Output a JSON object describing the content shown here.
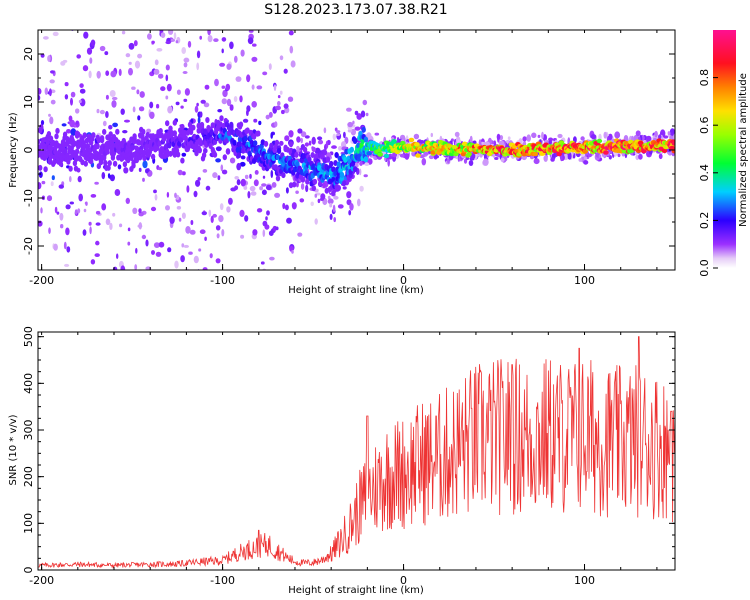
{
  "title": "S128.2023.173.07.38.R21",
  "colors": {
    "spectrogram_background": "#ffffff",
    "snr_line": "#ee3333",
    "axis": "#000000"
  },
  "chart_data": [
    {
      "type": "heatmap",
      "xlabel": "Height of straight line (km)",
      "ylabel": "Frequency (Hz)",
      "xlim": [
        -202,
        150
      ],
      "ylim": [
        -25,
        25
      ],
      "xticks": [
        -200,
        -100,
        0,
        100
      ],
      "yticks": [
        -20,
        -10,
        0,
        10,
        20
      ],
      "tick_labels_x": [
        "-200",
        "-100",
        "0",
        "100"
      ],
      "tick_labels_y": [
        "-20",
        "-10",
        "0",
        "10",
        "20"
      ],
      "colorbar": {
        "label": "Normalized spectral amplitude",
        "range": [
          0.0,
          1.0
        ],
        "ticks": [
          "0.0",
          "0.2",
          "0.4",
          "0.6",
          "0.8"
        ],
        "tick_values": [
          0.0,
          0.2,
          0.4,
          0.6,
          0.8
        ],
        "colormap": "white-purple-blue-cyan-green-yellow-red-magenta"
      },
      "ridge_frequency_vs_height": [
        [
          -200,
          0.0
        ],
        [
          -180,
          0.0
        ],
        [
          -160,
          0.0
        ],
        [
          -140,
          1.0
        ],
        [
          -120,
          2.0
        ],
        [
          -100,
          3.0
        ],
        [
          -90,
          2.0
        ],
        [
          -80,
          0.0
        ],
        [
          -70,
          -2.0
        ],
        [
          -60,
          -3.0
        ],
        [
          -50,
          -4.0
        ],
        [
          -40,
          -5.0
        ],
        [
          -33,
          -4.0
        ],
        [
          -28,
          -1.5
        ],
        [
          -25,
          1.0
        ],
        [
          -20,
          0.5
        ],
        [
          0,
          0.5
        ],
        [
          50,
          0.0
        ],
        [
          100,
          0.5
        ],
        [
          150,
          1.0
        ]
      ],
      "ridge_amplitude_vs_height": [
        [
          -200,
          0.15
        ],
        [
          -150,
          0.15
        ],
        [
          -110,
          0.2
        ],
        [
          -95,
          0.3
        ],
        [
          -60,
          0.3
        ],
        [
          -40,
          0.35
        ],
        [
          -20,
          0.45
        ],
        [
          0,
          0.7
        ],
        [
          50,
          0.85
        ],
        [
          100,
          0.9
        ],
        [
          150,
          0.9
        ]
      ]
    },
    {
      "type": "line",
      "xlabel": "Height of straight line (km)",
      "ylabel": "SNR (10 * v/v)",
      "xlim": [
        -202,
        150
      ],
      "ylim": [
        0,
        510
      ],
      "xticks": [
        -200,
        -100,
        0,
        100
      ],
      "yticks": [
        0,
        100,
        200,
        300,
        400,
        500
      ],
      "tick_labels_x": [
        "-200",
        "-100",
        "0",
        "100"
      ],
      "tick_labels_y": [
        "0",
        "100",
        "200",
        "300",
        "400",
        "500"
      ],
      "series": [
        {
          "color": "#ee3333",
          "points": [
            [
              -202,
              10
            ],
            [
              -180,
              12
            ],
            [
              -160,
              10
            ],
            [
              -140,
              12
            ],
            [
              -125,
              13
            ],
            [
              -110,
              18
            ],
            [
              -100,
              20
            ],
            [
              -95,
              30
            ],
            [
              -90,
              38
            ],
            [
              -85,
              45
            ],
            [
              -80,
              50
            ],
            [
              -75,
              55
            ],
            [
              -70,
              42
            ],
            [
              -65,
              28
            ],
            [
              -60,
              18
            ],
            [
              -55,
              15
            ],
            [
              -50,
              16
            ],
            [
              -45,
              22
            ],
            [
              -40,
              35
            ],
            [
              -35,
              60
            ],
            [
              -30,
              90
            ],
            [
              -25,
              130
            ],
            [
              -20,
              160
            ],
            [
              -15,
              180
            ],
            [
              -10,
              200
            ],
            [
              -5,
              205
            ],
            [
              0,
              210
            ],
            [
              10,
              230
            ],
            [
              20,
              240
            ],
            [
              30,
              260
            ],
            [
              40,
              280
            ],
            [
              50,
              285
            ],
            [
              60,
              290
            ],
            [
              70,
              280
            ],
            [
              80,
              290
            ],
            [
              90,
              285
            ],
            [
              100,
              290
            ],
            [
              110,
              280
            ],
            [
              120,
              275
            ],
            [
              130,
              280
            ],
            [
              140,
              270
            ],
            [
              150,
              250
            ]
          ],
          "peaks": [
            [
              -80,
              85
            ],
            [
              -20,
              330
            ],
            [
              18,
              330
            ],
            [
              60,
              440
            ],
            [
              97,
              475
            ],
            [
              130,
              500
            ],
            [
              148,
              340
            ]
          ]
        }
      ]
    }
  ]
}
